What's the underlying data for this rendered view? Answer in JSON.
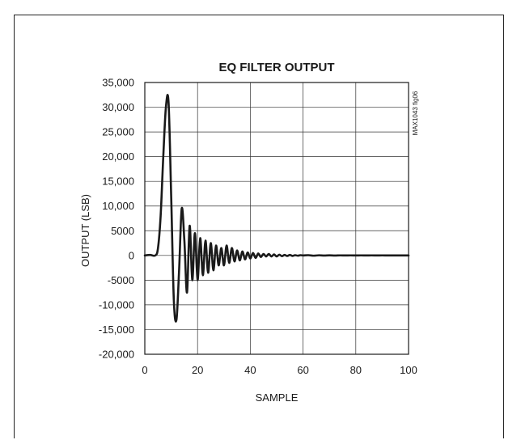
{
  "chart_data": {
    "type": "line",
    "title": "EQ FILTER OUTPUT",
    "xlabel": "SAMPLE",
    "ylabel": "OUTPUT (LSB)",
    "figure_id": "MAX1043 fig06",
    "xlim": [
      0,
      100
    ],
    "ylim": [
      -20000,
      35000
    ],
    "x_ticks": [
      0,
      20,
      40,
      60,
      80,
      100
    ],
    "x_tick_labels": [
      "0",
      "20",
      "40",
      "60",
      "80",
      "100"
    ],
    "y_ticks": [
      35000,
      30000,
      25000,
      20000,
      15000,
      10000,
      5000,
      0,
      -5000,
      -10000,
      -15000,
      -20000
    ],
    "y_tick_labels": [
      "35,000",
      "30,000",
      "25,000",
      "20,000",
      "15,000",
      "10,000",
      "5000",
      "0",
      "-5000",
      "-10,000",
      "-15,000",
      "-20,000"
    ],
    "grid": true,
    "series": [
      {
        "color": "#1a1a1a",
        "x": [
          0,
          2,
          4,
          5,
          6,
          7,
          8,
          9,
          10,
          11,
          12,
          13,
          14,
          15,
          16,
          17,
          18,
          19,
          20,
          21,
          22,
          23,
          24,
          25,
          26,
          27,
          28,
          29,
          30,
          31,
          32,
          33,
          34,
          35,
          36,
          37,
          38,
          39,
          40,
          41,
          42,
          43,
          44,
          45,
          46,
          47,
          48,
          49,
          50,
          51,
          52,
          53,
          54,
          55,
          56,
          57,
          58,
          59,
          60,
          62,
          64,
          66,
          68,
          70,
          72,
          74,
          76,
          78,
          80,
          82,
          84,
          86,
          88,
          90,
          92,
          94,
          96,
          98,
          100
        ],
        "y": [
          0,
          100,
          0,
          1500,
          8000,
          20000,
          30000,
          31000,
          12000,
          -9000,
          -13000,
          -3000,
          9500,
          3000,
          -7500,
          6000,
          -5000,
          4500,
          -5000,
          3500,
          -4000,
          3000,
          -3500,
          2500,
          -3000,
          2000,
          -2000,
          1500,
          -2000,
          2000,
          -1500,
          1500,
          -1200,
          1000,
          -1000,
          800,
          -800,
          600,
          -600,
          500,
          -500,
          400,
          -300,
          300,
          -200,
          300,
          -200,
          200,
          -200,
          150,
          -150,
          100,
          -100,
          100,
          -100,
          50,
          -50,
          50,
          0,
          50,
          -50,
          30,
          -20,
          20,
          -20,
          10,
          0,
          10,
          0,
          10,
          0,
          10,
          0,
          10,
          0,
          0,
          0,
          0,
          0
        ]
      }
    ]
  }
}
